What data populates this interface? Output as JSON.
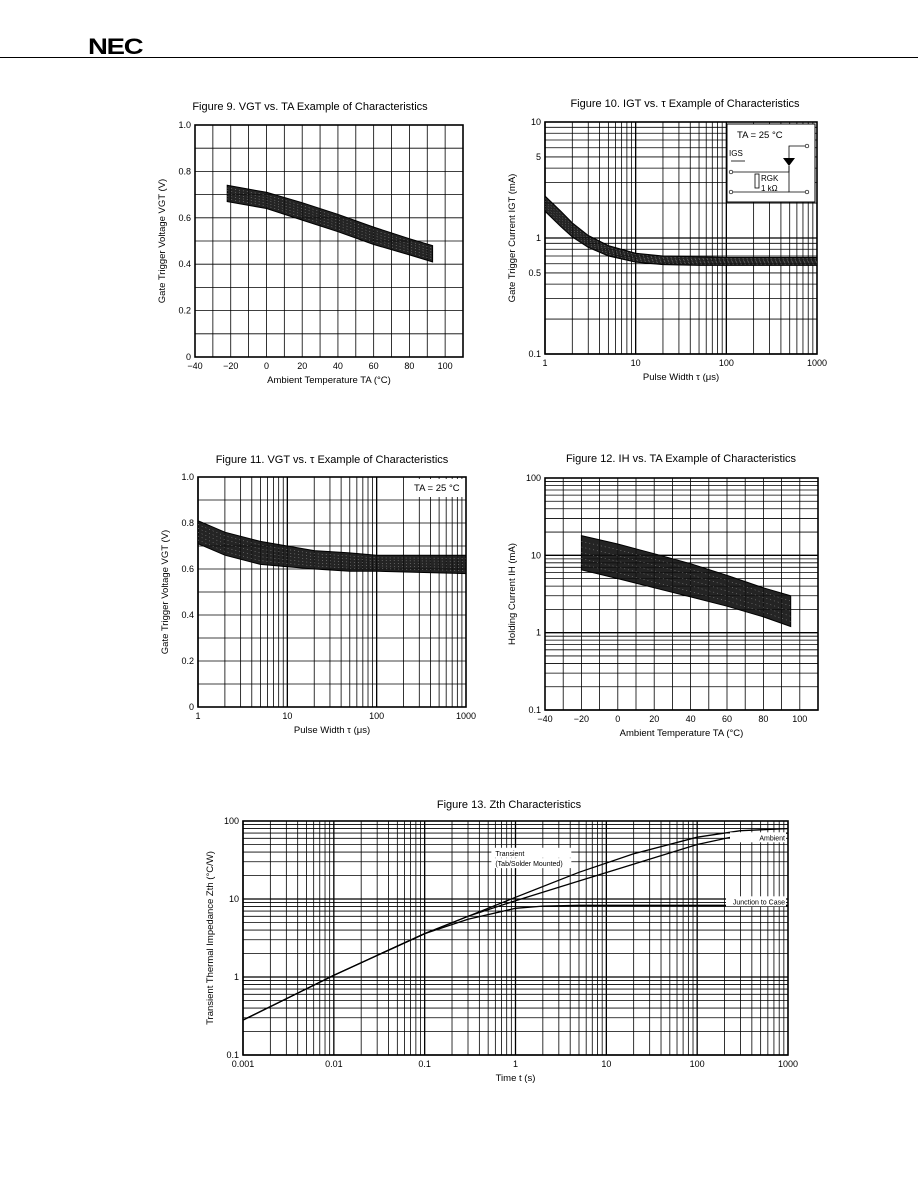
{
  "header": {
    "logo": "NEC"
  },
  "chart_data": [
    {
      "id": "fig9",
      "type": "area",
      "title": "Figure 9. VGT vs. TA Example of Characteristics",
      "xlabel": "Ambient Temperature TA (°C)",
      "ylabel": "Gate Trigger Voltage VGT (V)",
      "xscale": "linear",
      "yscale": "linear",
      "xlim": [
        -40,
        110
      ],
      "ylim": [
        0,
        1.0
      ],
      "xticks": [
        -40,
        -20,
        0,
        20,
        40,
        60,
        80,
        100
      ],
      "yticks": [
        0,
        0.2,
        0.4,
        0.6,
        0.8,
        1.0
      ],
      "tick_labels_x": [
        "−40",
        "−20",
        "0",
        "20",
        "40",
        "60",
        "80",
        "100"
      ],
      "tick_labels_y": [
        "0",
        "0.2",
        "0.4",
        "0.6",
        "0.8",
        "1.0"
      ],
      "grid": true,
      "band": {
        "x": [
          -22,
          0,
          20,
          40,
          60,
          80,
          93
        ],
        "upper": [
          0.74,
          0.71,
          0.665,
          0.615,
          0.56,
          0.51,
          0.48
        ],
        "lower": [
          0.67,
          0.64,
          0.59,
          0.54,
          0.485,
          0.44,
          0.41
        ]
      }
    },
    {
      "id": "fig10",
      "type": "area",
      "title": "Figure 10. IGT vs. τ Example of Characteristics",
      "xlabel": "Pulse Width τ (μs)",
      "ylabel": "Gate Trigger Current IGT (mA)",
      "xscale": "log",
      "yscale": "log",
      "xlim": [
        1,
        1000
      ],
      "ylim": [
        0.1,
        10
      ],
      "xticks": [
        1,
        10,
        100,
        1000
      ],
      "yticks": [
        0.1,
        0.5,
        1,
        5,
        10
      ],
      "tick_labels_x": [
        "1",
        "10",
        "100",
        "1000"
      ],
      "tick_labels_y": [
        "0.1",
        "0.5",
        "1",
        "5",
        "10"
      ],
      "grid": true,
      "annotation": "TA = 25 °C",
      "inset": {
        "current_label": "IGS",
        "resistor_label": "RGK",
        "resistor_value": "1 kΩ"
      },
      "band": {
        "x": [
          1,
          1.5,
          2,
          3,
          5,
          10,
          20,
          50,
          100,
          1000
        ],
        "upper": [
          2.3,
          1.7,
          1.35,
          1.05,
          0.86,
          0.74,
          0.7,
          0.69,
          0.68,
          0.68
        ],
        "lower": [
          1.7,
          1.25,
          1.02,
          0.83,
          0.7,
          0.62,
          0.59,
          0.58,
          0.58,
          0.58
        ]
      }
    },
    {
      "id": "fig11",
      "type": "area",
      "title": "Figure 11. VGT vs. τ Example of Characteristics",
      "xlabel": "Pulse Width τ (μs)",
      "ylabel": "Gate Trigger Voltage VGT (V)",
      "xscale": "log",
      "yscale": "linear",
      "xlim": [
        1,
        1000
      ],
      "ylim": [
        0,
        1.0
      ],
      "xticks": [
        1,
        10,
        100,
        1000
      ],
      "yticks": [
        0,
        0.2,
        0.4,
        0.6,
        0.8,
        1.0
      ],
      "tick_labels_x": [
        "1",
        "10",
        "100",
        "1000"
      ],
      "tick_labels_y": [
        "0",
        "0.2",
        "0.4",
        "0.6",
        "0.8",
        "1.0"
      ],
      "grid": true,
      "annotation": "TA = 25 °C",
      "band": {
        "x": [
          1,
          2,
          5,
          10,
          20,
          50,
          100,
          1000
        ],
        "upper": [
          0.81,
          0.76,
          0.72,
          0.7,
          0.68,
          0.67,
          0.66,
          0.66
        ],
        "lower": [
          0.71,
          0.66,
          0.62,
          0.61,
          0.6,
          0.59,
          0.59,
          0.58
        ]
      }
    },
    {
      "id": "fig12",
      "type": "area",
      "title": "Figure 12. IH vs. TA Example of Characteristics",
      "xlabel": "Ambient Temperature TA (°C)",
      "ylabel": "Holding Current IH (mA)",
      "xscale": "linear",
      "yscale": "log",
      "xlim": [
        -40,
        110
      ],
      "ylim": [
        0.1,
        100
      ],
      "xticks": [
        -40,
        -20,
        0,
        20,
        40,
        60,
        80,
        100
      ],
      "yticks": [
        0.1,
        1,
        10,
        100
      ],
      "tick_labels_x": [
        "−40",
        "−20",
        "0",
        "20",
        "40",
        "60",
        "80",
        "100"
      ],
      "tick_labels_y": [
        "0.1",
        "1",
        "10",
        "100"
      ],
      "grid": true,
      "band": {
        "x": [
          -20,
          0,
          20,
          40,
          60,
          80,
          95
        ],
        "upper": [
          18,
          14,
          10.5,
          7.8,
          5.5,
          3.8,
          3.0
        ],
        "lower": [
          6.5,
          5.0,
          3.8,
          2.9,
          2.2,
          1.6,
          1.2
        ]
      }
    },
    {
      "id": "fig13",
      "type": "line",
      "title": "Figure 13. Zth Characteristics",
      "xlabel": "Time t (s)",
      "ylabel": "Transient Thermal Impedance Zth (°C/W)",
      "xscale": "log",
      "yscale": "log",
      "xlim": [
        0.001,
        1000
      ],
      "ylim": [
        0.1,
        100
      ],
      "xticks": [
        0.001,
        0.01,
        0.1,
        1,
        10,
        100,
        1000
      ],
      "yticks": [
        0.1,
        1,
        10,
        100
      ],
      "tick_labels_x": [
        "0.001",
        "0.01",
        "0.1",
        "1",
        "10",
        "100",
        "1000"
      ],
      "tick_labels_y": [
        "0.1",
        "1",
        "10",
        "100"
      ],
      "grid": true,
      "series": [
        {
          "name": "Ambient",
          "label_line2": "",
          "x": [
            0.001,
            0.01,
            0.1,
            0.3,
            1,
            5,
            20,
            100,
            300,
            1000
          ],
          "y": [
            0.28,
            1.05,
            3.6,
            6.0,
            10.5,
            22,
            38,
            62,
            75,
            80
          ]
        },
        {
          "name": "Transient",
          "label_line2": "(Tab/Solder Mounted)",
          "x": [
            0.001,
            0.01,
            0.1,
            0.3,
            1,
            5,
            20,
            100,
            300,
            1000
          ],
          "y": [
            0.28,
            1.05,
            3.6,
            6.0,
            9.5,
            17,
            28,
            50,
            66,
            70
          ]
        },
        {
          "name": "Junction to Case",
          "label_line2": "",
          "x": [
            0.001,
            0.01,
            0.1,
            0.3,
            1,
            2,
            5,
            10,
            100,
            1000
          ],
          "y": [
            0.28,
            1.05,
            3.6,
            5.5,
            7.6,
            8.1,
            8.3,
            8.3,
            8.3,
            8.3
          ]
        }
      ]
    }
  ]
}
